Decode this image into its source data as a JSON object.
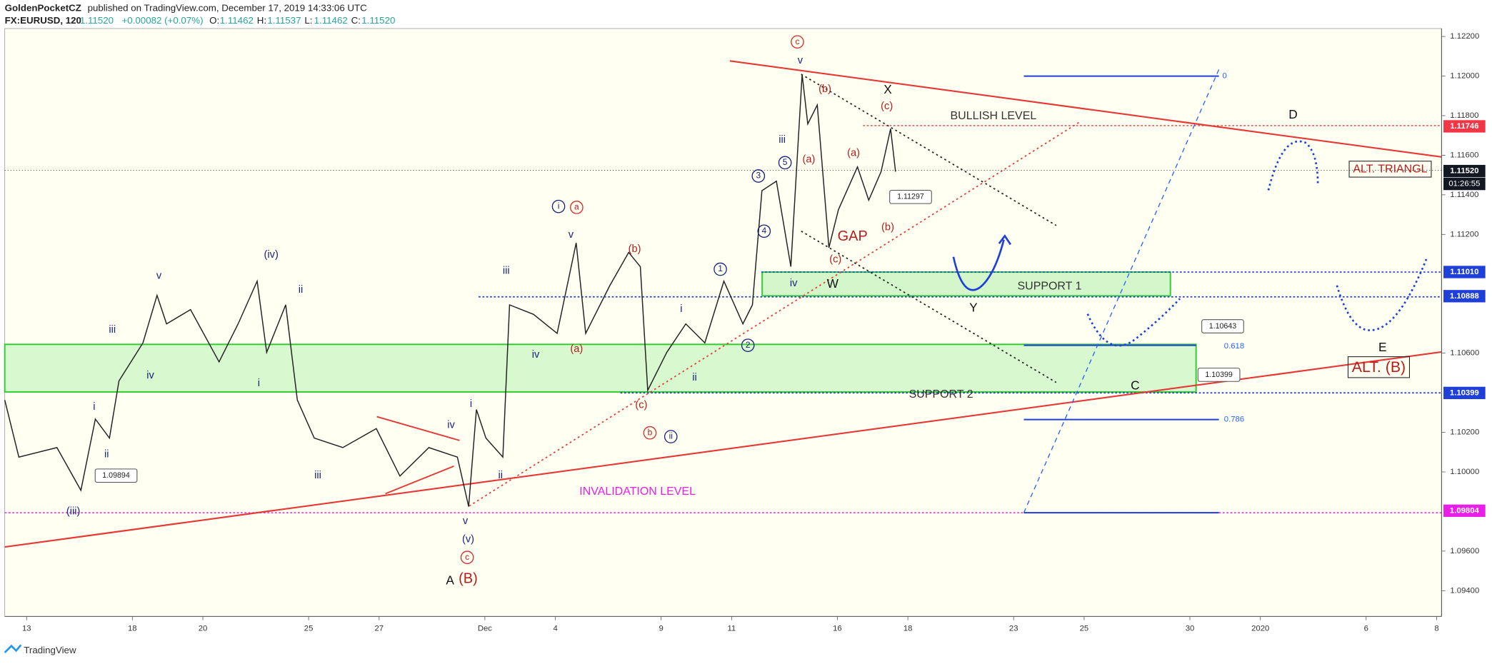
{
  "header": {
    "publisher": "GoldenPocketCZ",
    "published": "published on TradingView.com, December 17, 2019 14:33:06 UTC",
    "symbol": "FX:EURUSD, 120",
    "last": "1.11520",
    "change": "+0.00082 (+0.07%)",
    "o_label": "O:",
    "o": "1.11462",
    "h_label": "H:",
    "h": "1.11537",
    "l_label": "L:",
    "l": "1.11462",
    "c_label": "C:",
    "c": "1.11520"
  },
  "chart_data": {
    "type": "line",
    "color": "#222222",
    "x": [
      -0.62,
      -0.22,
      0.86,
      1.54,
      1.95,
      2.35,
      2.62,
      3.3,
      3.7,
      3.97,
      4.65,
      5.46,
      6.0,
      6.54,
      6.81,
      7.35,
      7.68,
      8.16,
      8.97,
      9.92,
      10.59,
      11.41,
      12.22,
      12.54,
      12.76,
      13.03,
      13.51,
      13.7,
      14.38,
      15.05,
      15.59,
      15.86,
      16.54,
      17.08,
      17.41,
      17.62,
      18.16,
      18.7,
      19.24,
      19.78,
      20.32,
      20.59,
      20.86,
      21.27,
      21.68,
      22.0,
      22.16,
      22.43,
      22.76,
      23.03,
      23.57,
      23.89,
      24.24,
      24.51,
      24.65
    ],
    "values": [
      1.10363,
      1.10075,
      1.10123,
      1.09907,
      1.10267,
      1.10171,
      1.1046,
      1.10652,
      1.10892,
      1.10748,
      1.1082,
      1.10556,
      1.10748,
      1.10964,
      1.10604,
      1.10844,
      1.10363,
      1.10171,
      1.10123,
      1.10219,
      1.09979,
      1.10123,
      1.10075,
      1.09825,
      1.10315,
      1.10171,
      1.10075,
      1.10844,
      1.10796,
      1.107,
      1.11157,
      1.107,
      1.1094,
      1.11109,
      1.11037,
      1.10412,
      1.10604,
      1.10748,
      1.10652,
      1.10964,
      1.10748,
      1.10844,
      1.11421,
      1.11469,
      1.11037,
      1.12008,
      1.11758,
      1.11854,
      1.11133,
      1.11325,
      1.11541,
      1.11373,
      1.11517,
      1.11734,
      1.11517
    ],
    "xlim": [
      -0.62,
      40.14
    ],
    "ylim": [
      1.0927,
      1.1224
    ],
    "xticks": [
      {
        "value": 0,
        "label": "13"
      },
      {
        "value": 3,
        "label": "18"
      },
      {
        "value": 5,
        "label": "20"
      },
      {
        "value": 8,
        "label": "25"
      },
      {
        "value": 10,
        "label": "27"
      },
      {
        "value": 13,
        "label": "Dec"
      },
      {
        "value": 15,
        "label": "4"
      },
      {
        "value": 18,
        "label": "9"
      },
      {
        "value": 20,
        "label": "11"
      },
      {
        "value": 23,
        "label": "16"
      },
      {
        "value": 25,
        "label": "18"
      },
      {
        "value": 28,
        "label": "23"
      },
      {
        "value": 30,
        "label": "25"
      },
      {
        "value": 33,
        "label": "30"
      },
      {
        "value": 35,
        "label": "2020"
      },
      {
        "value": 38,
        "label": "6"
      },
      {
        "value": 40,
        "label": "8"
      }
    ],
    "yticks": [
      {
        "value": 1.122,
        "label": "1.12200"
      },
      {
        "value": 1.12,
        "label": "1.12000"
      },
      {
        "value": 1.118,
        "label": "1.11800"
      },
      {
        "value": 1.116,
        "label": "1.11600"
      },
      {
        "value": 1.114,
        "label": "1.11400"
      },
      {
        "value": 1.112,
        "label": "1.11200"
      },
      {
        "value": 1.106,
        "label": "1.10600"
      },
      {
        "value": 1.102,
        "label": "1.10200"
      },
      {
        "value": 1.1,
        "label": "1.10000"
      },
      {
        "value": 1.096,
        "label": "1.09600"
      },
      {
        "value": 1.094,
        "label": "1.09400"
      }
    ],
    "price_badges": [
      {
        "value": 1.11746,
        "label": "1.11746",
        "color": "#f23645"
      },
      {
        "value": 1.1152,
        "label": "1.11520",
        "color": "#131722"
      },
      {
        "value": 1.1101,
        "label": "1.11010",
        "color": "#1e3fd8"
      },
      {
        "value": 1.10888,
        "label": "1.10888",
        "color": "#1e3fd8"
      },
      {
        "value": 1.10399,
        "label": "1.10399",
        "color": "#1e3fd8"
      },
      {
        "value": 1.09804,
        "label": "1.09804",
        "color": "#e91ee9"
      }
    ],
    "countdown": "01:26:55"
  },
  "annotations": [
    "(iii)",
    "ii",
    "i",
    "iii",
    "iv",
    "v",
    "(iv)",
    "ii",
    "i",
    "iii",
    "iv",
    "i",
    "ii",
    "v",
    "(v)",
    "iii",
    "iv",
    "v",
    "i",
    "ii",
    "iii",
    "iv",
    "v",
    "i",
    "ii",
    "1",
    "2",
    "3",
    "4",
    "5",
    "(a)",
    "(b)",
    "(c)",
    "(a)",
    "(b)",
    "(c)",
    "(a)",
    "(b)",
    "(c)",
    "a",
    "b",
    "c",
    "c",
    "(B)",
    "GAP",
    "ALT. (B)",
    "ALT. TRIANGL",
    "A",
    "X",
    "W",
    "Y",
    "C",
    "D",
    "E",
    "BULLISH LEVEL",
    "SUPPORT 1",
    "SUPPORT 2",
    "INVALIDATION LEVEL",
    "1.09894",
    "1.11297",
    "1.10643",
    "1.10399",
    "0",
    "0.618",
    "0.786"
  ],
  "footer": "TradingView"
}
